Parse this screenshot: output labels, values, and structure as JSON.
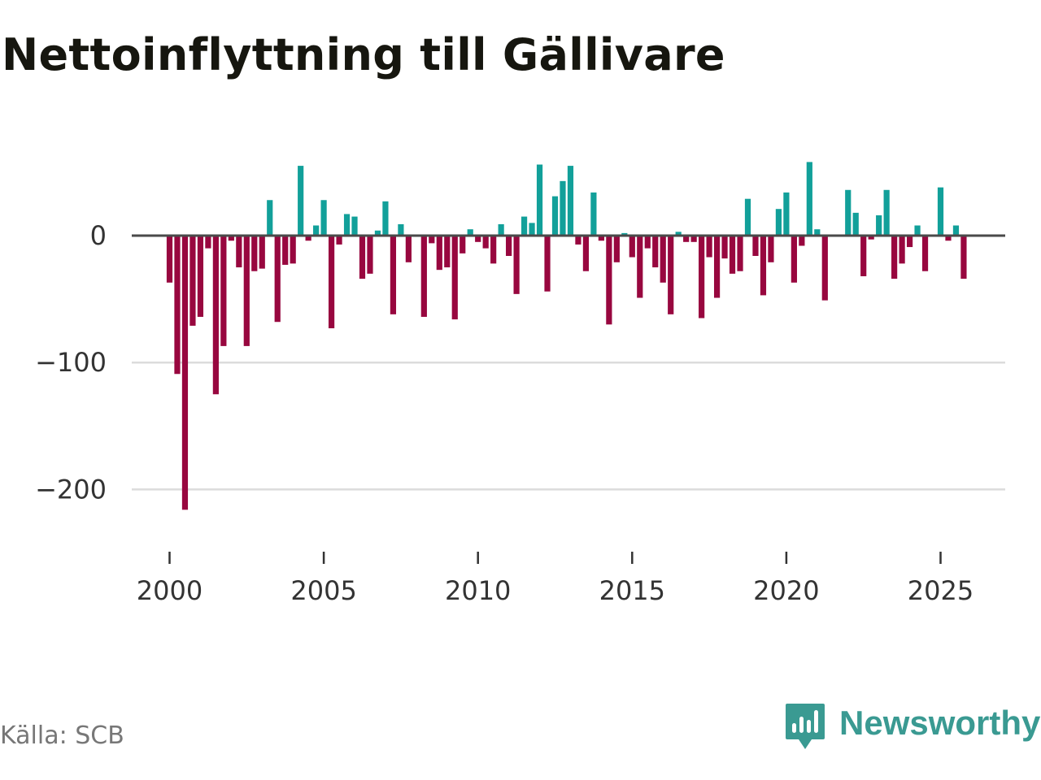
{
  "title": "Nettoinflyttning till Gällivare",
  "source": "Källa: SCB",
  "brand": "Newsworthy",
  "colors": {
    "positive": "#12a09a",
    "negative": "#98073f",
    "zero_line": "#4a4a4a",
    "gridline": "#dcdcdc",
    "brand": "#3a9a92"
  },
  "chart_data": {
    "type": "bar",
    "title": "Nettoinflyttning till Gällivare",
    "xlabel": "",
    "ylabel": "",
    "start": 2000.0,
    "step": 0.25,
    "values": [
      -37,
      -109,
      -216,
      -71,
      -64,
      -10,
      -125,
      -87,
      -4,
      -25,
      -87,
      -28,
      -26,
      28,
      -68,
      -23,
      -22,
      55,
      -4,
      8,
      28,
      -73,
      -7,
      17,
      15,
      -34,
      -30,
      4,
      27,
      -62,
      9,
      -21,
      0,
      -64,
      -6,
      -27,
      -25,
      -66,
      -14,
      5,
      -5,
      -10,
      -22,
      9,
      -16,
      -46,
      15,
      10,
      56,
      -44,
      31,
      43,
      55,
      -7,
      -28,
      34,
      -4,
      -70,
      -21,
      2,
      -17,
      -49,
      -10,
      -25,
      -37,
      -62,
      3,
      -5,
      -5,
      -65,
      -17,
      -49,
      -18,
      -30,
      -28,
      29,
      -16,
      -47,
      -21,
      21,
      34,
      -37,
      -8,
      58,
      5,
      -51,
      0,
      0,
      36,
      18,
      -32,
      -3,
      16,
      36,
      -34,
      -22,
      -9,
      8,
      -28,
      0,
      38,
      -4,
      8,
      -34
    ],
    "xticks": [
      2000,
      2005,
      2010,
      2015,
      2020,
      2025
    ],
    "xtick_labels": [
      "2000",
      "2005",
      "2010",
      "2015",
      "2020",
      "2025"
    ],
    "yticks": [
      0,
      -100,
      -200
    ],
    "ytick_labels": [
      "0",
      "−100",
      "−200"
    ],
    "ylim": [
      -245,
      72
    ],
    "grid": true
  }
}
